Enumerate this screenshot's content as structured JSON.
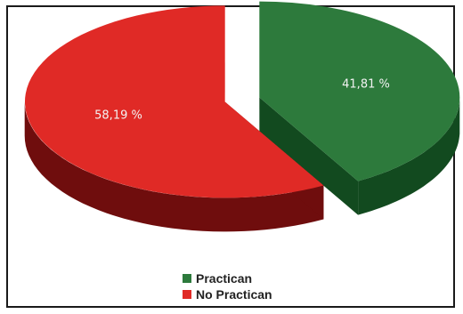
{
  "chart_data": {
    "type": "pie",
    "style": "3d-exploded",
    "legend_position": "bottom",
    "slices": [
      {
        "name": "Practican",
        "value": 41.81,
        "label": "41,81 %",
        "color": "#2d7a3c",
        "side_color": "#124a1f"
      },
      {
        "name": "No Practican",
        "value": 58.19,
        "label": "58,19 %",
        "color": "#e02a26",
        "side_color": "#6f0d0d"
      }
    ]
  }
}
